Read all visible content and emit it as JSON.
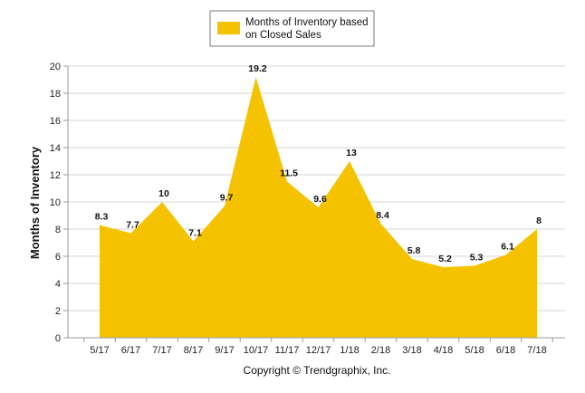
{
  "chart_data": {
    "type": "area",
    "title": "",
    "xlabel": "",
    "ylabel": "Months of Inventory",
    "ylim": [
      0,
      20
    ],
    "yticks": [
      0,
      2,
      4,
      6,
      8,
      10,
      12,
      14,
      16,
      18,
      20
    ],
    "grid": true,
    "legend_position": "top-center",
    "categories": [
      "5/17",
      "6/17",
      "7/17",
      "8/17",
      "9/17",
      "10/17",
      "11/17",
      "12/17",
      "1/18",
      "2/18",
      "3/18",
      "4/18",
      "5/18",
      "6/18",
      "7/18"
    ],
    "series": [
      {
        "name": "Months of Inventory based on Closed Sales",
        "legend_lines": [
          "Months of Inventory based",
          "on Closed Sales"
        ],
        "color": "#F5C200",
        "values": [
          8.3,
          7.7,
          10,
          7.1,
          9.7,
          19.2,
          11.5,
          9.6,
          13,
          8.4,
          5.8,
          5.2,
          5.3,
          6.1,
          8
        ]
      }
    ]
  },
  "footer": "Copyright © Trendgraphix, Inc."
}
